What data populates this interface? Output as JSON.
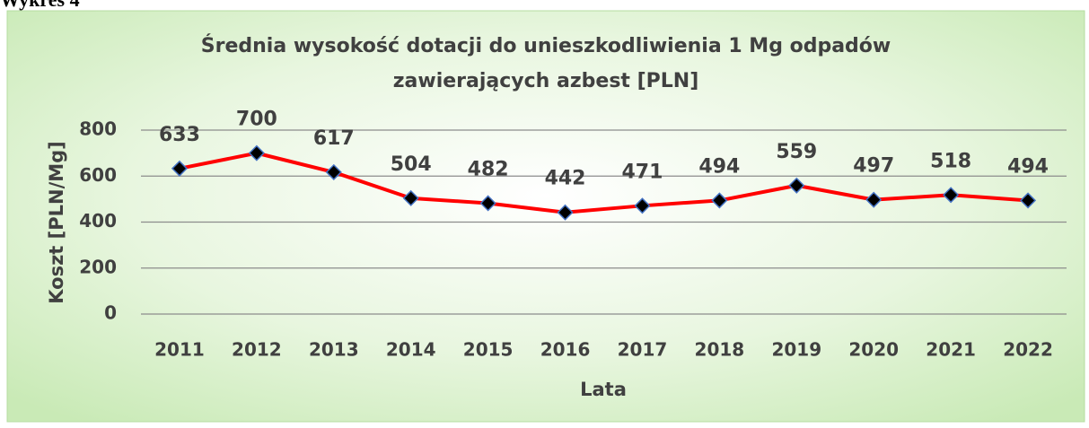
{
  "heading": "Wykres 4",
  "chart_data": {
    "type": "line",
    "title": "Średnia wysokość dotacji do unieszkodliwienia 1 Mg odpadów",
    "subtitle": "zawierających azbest [PLN]",
    "x_label": "Lata",
    "y_label": "Koszt [PLN/Mg]",
    "categories": [
      "2011",
      "2012",
      "2013",
      "2014",
      "2015",
      "2016",
      "2017",
      "2018",
      "2019",
      "2020",
      "2021",
      "2022"
    ],
    "series": [
      {
        "name": "Koszt",
        "color": "#ff0000",
        "marker_color": "#000000",
        "values": [
          633,
          700,
          617,
          504,
          482,
          442,
          471,
          494,
          559,
          497,
          518,
          494
        ]
      }
    ],
    "ylim": [
      0,
      800
    ],
    "yticks": [
      0,
      200,
      400,
      600,
      800
    ],
    "grid": true
  }
}
